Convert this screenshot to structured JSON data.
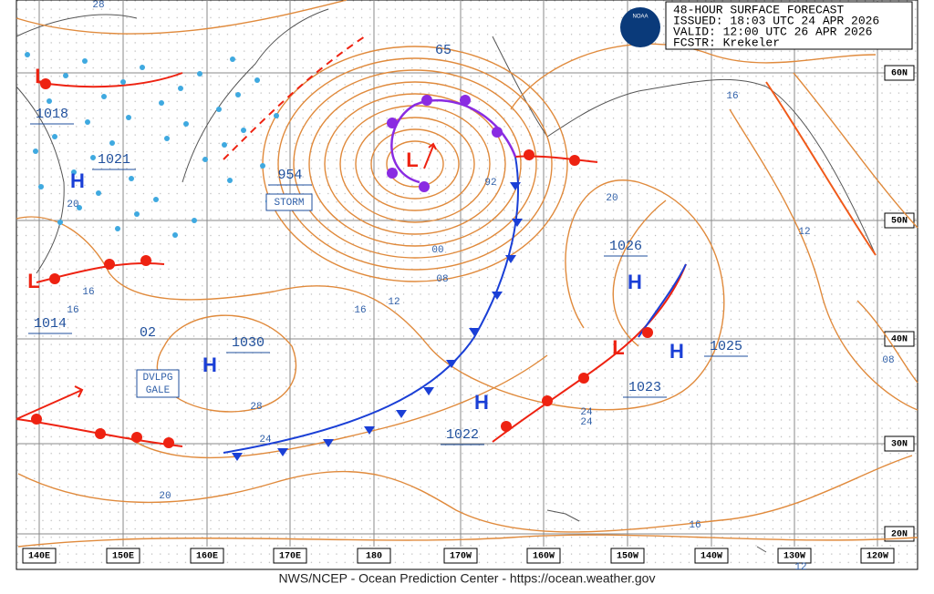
{
  "header": {
    "lines": [
      "48-HOUR SURFACE FORECAST",
      "ISSUED: 18:03 UTC 24 APR 2026",
      "VALID:  12:00 UTC 26 APR 2026",
      "FCSTR:  Krekeler"
    ],
    "logo": "NOAA"
  },
  "latitudes": [
    "60N",
    "50N",
    "40N",
    "30N",
    "20N"
  ],
  "longitudes": [
    "140E",
    "150E",
    "160E",
    "170E",
    "180",
    "170W",
    "160W",
    "150W",
    "140W",
    "130W",
    "120W"
  ],
  "centers": [
    {
      "symbol": "L",
      "pressure": "1018"
    },
    {
      "symbol": "H",
      "pressure": "1021"
    },
    {
      "symbol": "L",
      "pressure": "954"
    },
    {
      "symbol": "L",
      "pressure": "1014"
    },
    {
      "symbol": "H",
      "pressure": "1030"
    },
    {
      "symbol": "H",
      "pressure": "1026"
    },
    {
      "symbol": "H",
      "pressure": "1025"
    },
    {
      "symbol": "L",
      "pressure": "1023"
    },
    {
      "symbol": "H",
      "pressure": "1022"
    }
  ],
  "other_labels": [
    "65",
    "02"
  ],
  "boxes": [
    "STORM",
    "DVLPG",
    "GALE"
  ],
  "isobar_labels": [
    "28",
    "20",
    "16",
    "16",
    "92",
    "00",
    "08",
    "12",
    "16",
    "20",
    "24",
    "28",
    "20",
    "16",
    "12",
    "08",
    "24",
    "24",
    "16",
    "12"
  ],
  "footer": "NWS/NCEP - Ocean Prediction Center - https://ocean.weather.gov"
}
